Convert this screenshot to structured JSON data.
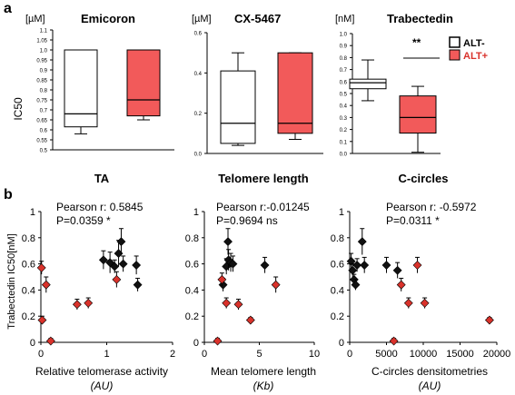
{
  "panel_a_label": "a",
  "panel_b_label": "b",
  "colors": {
    "alt_neg": "#ffffff",
    "alt_pos": "#f25a5a",
    "marker_alt_neg": "#111111",
    "marker_alt_pos": "#d9322b"
  },
  "legend": {
    "alt_neg": "ALT-",
    "alt_pos": "ALT+"
  },
  "chart_data": [
    {
      "type": "box",
      "title": "Emicoron",
      "unit": "[µM]",
      "ylabel": "IC50",
      "ylim": [
        0.5,
        1.1
      ],
      "yticks": [
        "0.5",
        "0.55",
        "0.6",
        "0.65",
        "0.7",
        "0.75",
        "0.8",
        "0.85",
        "0.9",
        "0.95",
        "1.0",
        "1.05",
        "1.1"
      ],
      "yticks_values": [
        0.5,
        0.55,
        0.6,
        0.65,
        0.7,
        0.75,
        0.8,
        0.85,
        0.9,
        0.95,
        1.0,
        1.05,
        1.1
      ],
      "series": [
        {
          "name": "ALT-",
          "min": 0.58,
          "q1": 0.615,
          "median": 0.68,
          "q3": 1.0,
          "max": 1.0
        },
        {
          "name": "ALT+",
          "min": 0.65,
          "q1": 0.67,
          "median": 0.75,
          "q3": 1.0,
          "max": 1.0
        }
      ]
    },
    {
      "type": "box",
      "title": "CX-5467",
      "unit": "[µM]",
      "ylim": [
        0,
        0.6
      ],
      "yticks": [
        "0.0",
        "0.2",
        "0.4",
        "0.6"
      ],
      "yticks_values": [
        0,
        0.2,
        0.4,
        0.6
      ],
      "series": [
        {
          "name": "ALT-",
          "min": 0.04,
          "q1": 0.05,
          "median": 0.15,
          "q3": 0.41,
          "max": 0.5
        },
        {
          "name": "ALT+",
          "min": 0.07,
          "q1": 0.1,
          "median": 0.15,
          "q3": 0.5,
          "max": 0.5
        }
      ]
    },
    {
      "type": "box",
      "title": "Trabectedin",
      "unit": "[nM]",
      "ylim": [
        0,
        1
      ],
      "yticks": [
        "0.0",
        "0.1",
        "0.2",
        "0.3",
        "0.4",
        "0.5",
        "0.6",
        "0.7",
        "0.8",
        "0.9",
        "1.0"
      ],
      "yticks_values": [
        0,
        0.1,
        0.2,
        0.3,
        0.4,
        0.5,
        0.6,
        0.7,
        0.8,
        0.9,
        1.0
      ],
      "significance": "**",
      "series": [
        {
          "name": "ALT-",
          "min": 0.44,
          "q1": 0.54,
          "median": 0.59,
          "q3": 0.62,
          "max": 0.78
        },
        {
          "name": "ALT+",
          "min": 0.01,
          "q1": 0.17,
          "median": 0.3,
          "q3": 0.48,
          "max": 0.56
        }
      ]
    },
    {
      "type": "scatter",
      "title": "TA",
      "ylabel": "Trabectedin IC50[nM]",
      "xlabel": "Relative telomerase activity",
      "xunit": "(AU)",
      "xlim": [
        0,
        2
      ],
      "ylim": [
        0,
        1
      ],
      "xticks": [
        "0",
        "1",
        "2"
      ],
      "xticks_values": [
        0,
        1,
        2
      ],
      "yticks": [
        "0",
        "0.2",
        "0.4",
        "0.6",
        "0.8",
        "1"
      ],
      "yticks_values": [
        0,
        0.2,
        0.4,
        0.6,
        0.8,
        1
      ],
      "stats": [
        "Pearson r: 0.5845",
        "P=0.0359 *"
      ],
      "series": [
        {
          "name": "ALT-",
          "points": [
            [
              0.95,
              0.63,
              0.07
            ],
            [
              1.05,
              0.61,
              0.08
            ],
            [
              1.12,
              0.58,
              0.05
            ],
            [
              1.18,
              0.68,
              0.1
            ],
            [
              1.22,
              0.77,
              0.1
            ],
            [
              1.25,
              0.6,
              0.06
            ],
            [
              1.45,
              0.59,
              0.07
            ],
            [
              1.47,
              0.44,
              0.05
            ]
          ]
        },
        {
          "name": "ALT+",
          "points": [
            [
              0.01,
              0.57,
              0.05
            ],
            [
              0.02,
              0.17,
              0.03
            ],
            [
              0.08,
              0.44,
              0.06
            ],
            [
              0.15,
              0.01,
              0.02
            ],
            [
              0.55,
              0.29,
              0.04
            ],
            [
              0.72,
              0.3,
              0.04
            ],
            [
              1.15,
              0.48,
              0.06
            ]
          ]
        }
      ]
    },
    {
      "type": "scatter",
      "title": "Telomere length",
      "xlabel": "Mean telomere length",
      "xunit": "(Kb)",
      "xlim": [
        0,
        10
      ],
      "ylim": [
        0,
        1
      ],
      "xticks": [
        "0",
        "5",
        "10"
      ],
      "xticks_values": [
        0,
        5,
        10
      ],
      "yticks": [
        "0",
        "0.2",
        "0.4",
        "0.6",
        "0.8",
        "1"
      ],
      "yticks_values": [
        0,
        0.2,
        0.4,
        0.6,
        0.8,
        1
      ],
      "stats": [
        "Pearson r:-0.01245",
        "P=0.9694  ns"
      ],
      "series": [
        {
          "name": "ALT-",
          "points": [
            [
              1.7,
              0.44,
              0.05
            ],
            [
              2.0,
              0.58,
              0.06
            ],
            [
              2.15,
              0.77,
              0.1
            ],
            [
              2.2,
              0.63,
              0.08
            ],
            [
              2.4,
              0.61,
              0.07
            ],
            [
              2.6,
              0.6,
              0.06
            ],
            [
              5.5,
              0.59,
              0.06
            ]
          ]
        },
        {
          "name": "ALT+",
          "points": [
            [
              1.2,
              0.01,
              0.02
            ],
            [
              1.6,
              0.48,
              0.05
            ],
            [
              2.0,
              0.3,
              0.04
            ],
            [
              3.1,
              0.29,
              0.04
            ],
            [
              4.2,
              0.17,
              0.02
            ],
            [
              6.5,
              0.44,
              0.06
            ]
          ]
        }
      ]
    },
    {
      "type": "scatter",
      "title": "C-circles",
      "xlabel": "C-circles densitometries",
      "xunit": "(AU)",
      "xlim": [
        0,
        20000
      ],
      "ylim": [
        0,
        1
      ],
      "xticks": [
        "0",
        "5000",
        "10000",
        "15000",
        "20000"
      ],
      "xticks_values": [
        0,
        5000,
        10000,
        15000,
        20000
      ],
      "yticks": [
        "0",
        "0.2",
        "0.4",
        "0.6",
        "0.8",
        "1"
      ],
      "yticks_values": [
        0,
        0.2,
        0.4,
        0.6,
        0.8,
        1
      ],
      "stats": [
        "Pearson r: -0.5972",
        "P=0.0311 *"
      ],
      "series": [
        {
          "name": "ALT-",
          "points": [
            [
              200,
              0.62,
              0.06
            ],
            [
              400,
              0.55,
              0.05
            ],
            [
              600,
              0.48,
              0.04
            ],
            [
              800,
              0.44,
              0.04
            ],
            [
              1000,
              0.59,
              0.05
            ],
            [
              1700,
              0.77,
              0.1
            ],
            [
              2000,
              0.59,
              0.06
            ],
            [
              5000,
              0.59,
              0.06
            ],
            [
              6500,
              0.55,
              0.06
            ]
          ]
        },
        {
          "name": "ALT+",
          "points": [
            [
              6000,
              0.01,
              0.02
            ],
            [
              7000,
              0.44,
              0.05
            ],
            [
              8000,
              0.3,
              0.04
            ],
            [
              9200,
              0.59,
              0.06
            ],
            [
              10200,
              0.3,
              0.04
            ],
            [
              19000,
              0.17,
              0.02
            ]
          ]
        }
      ]
    }
  ]
}
